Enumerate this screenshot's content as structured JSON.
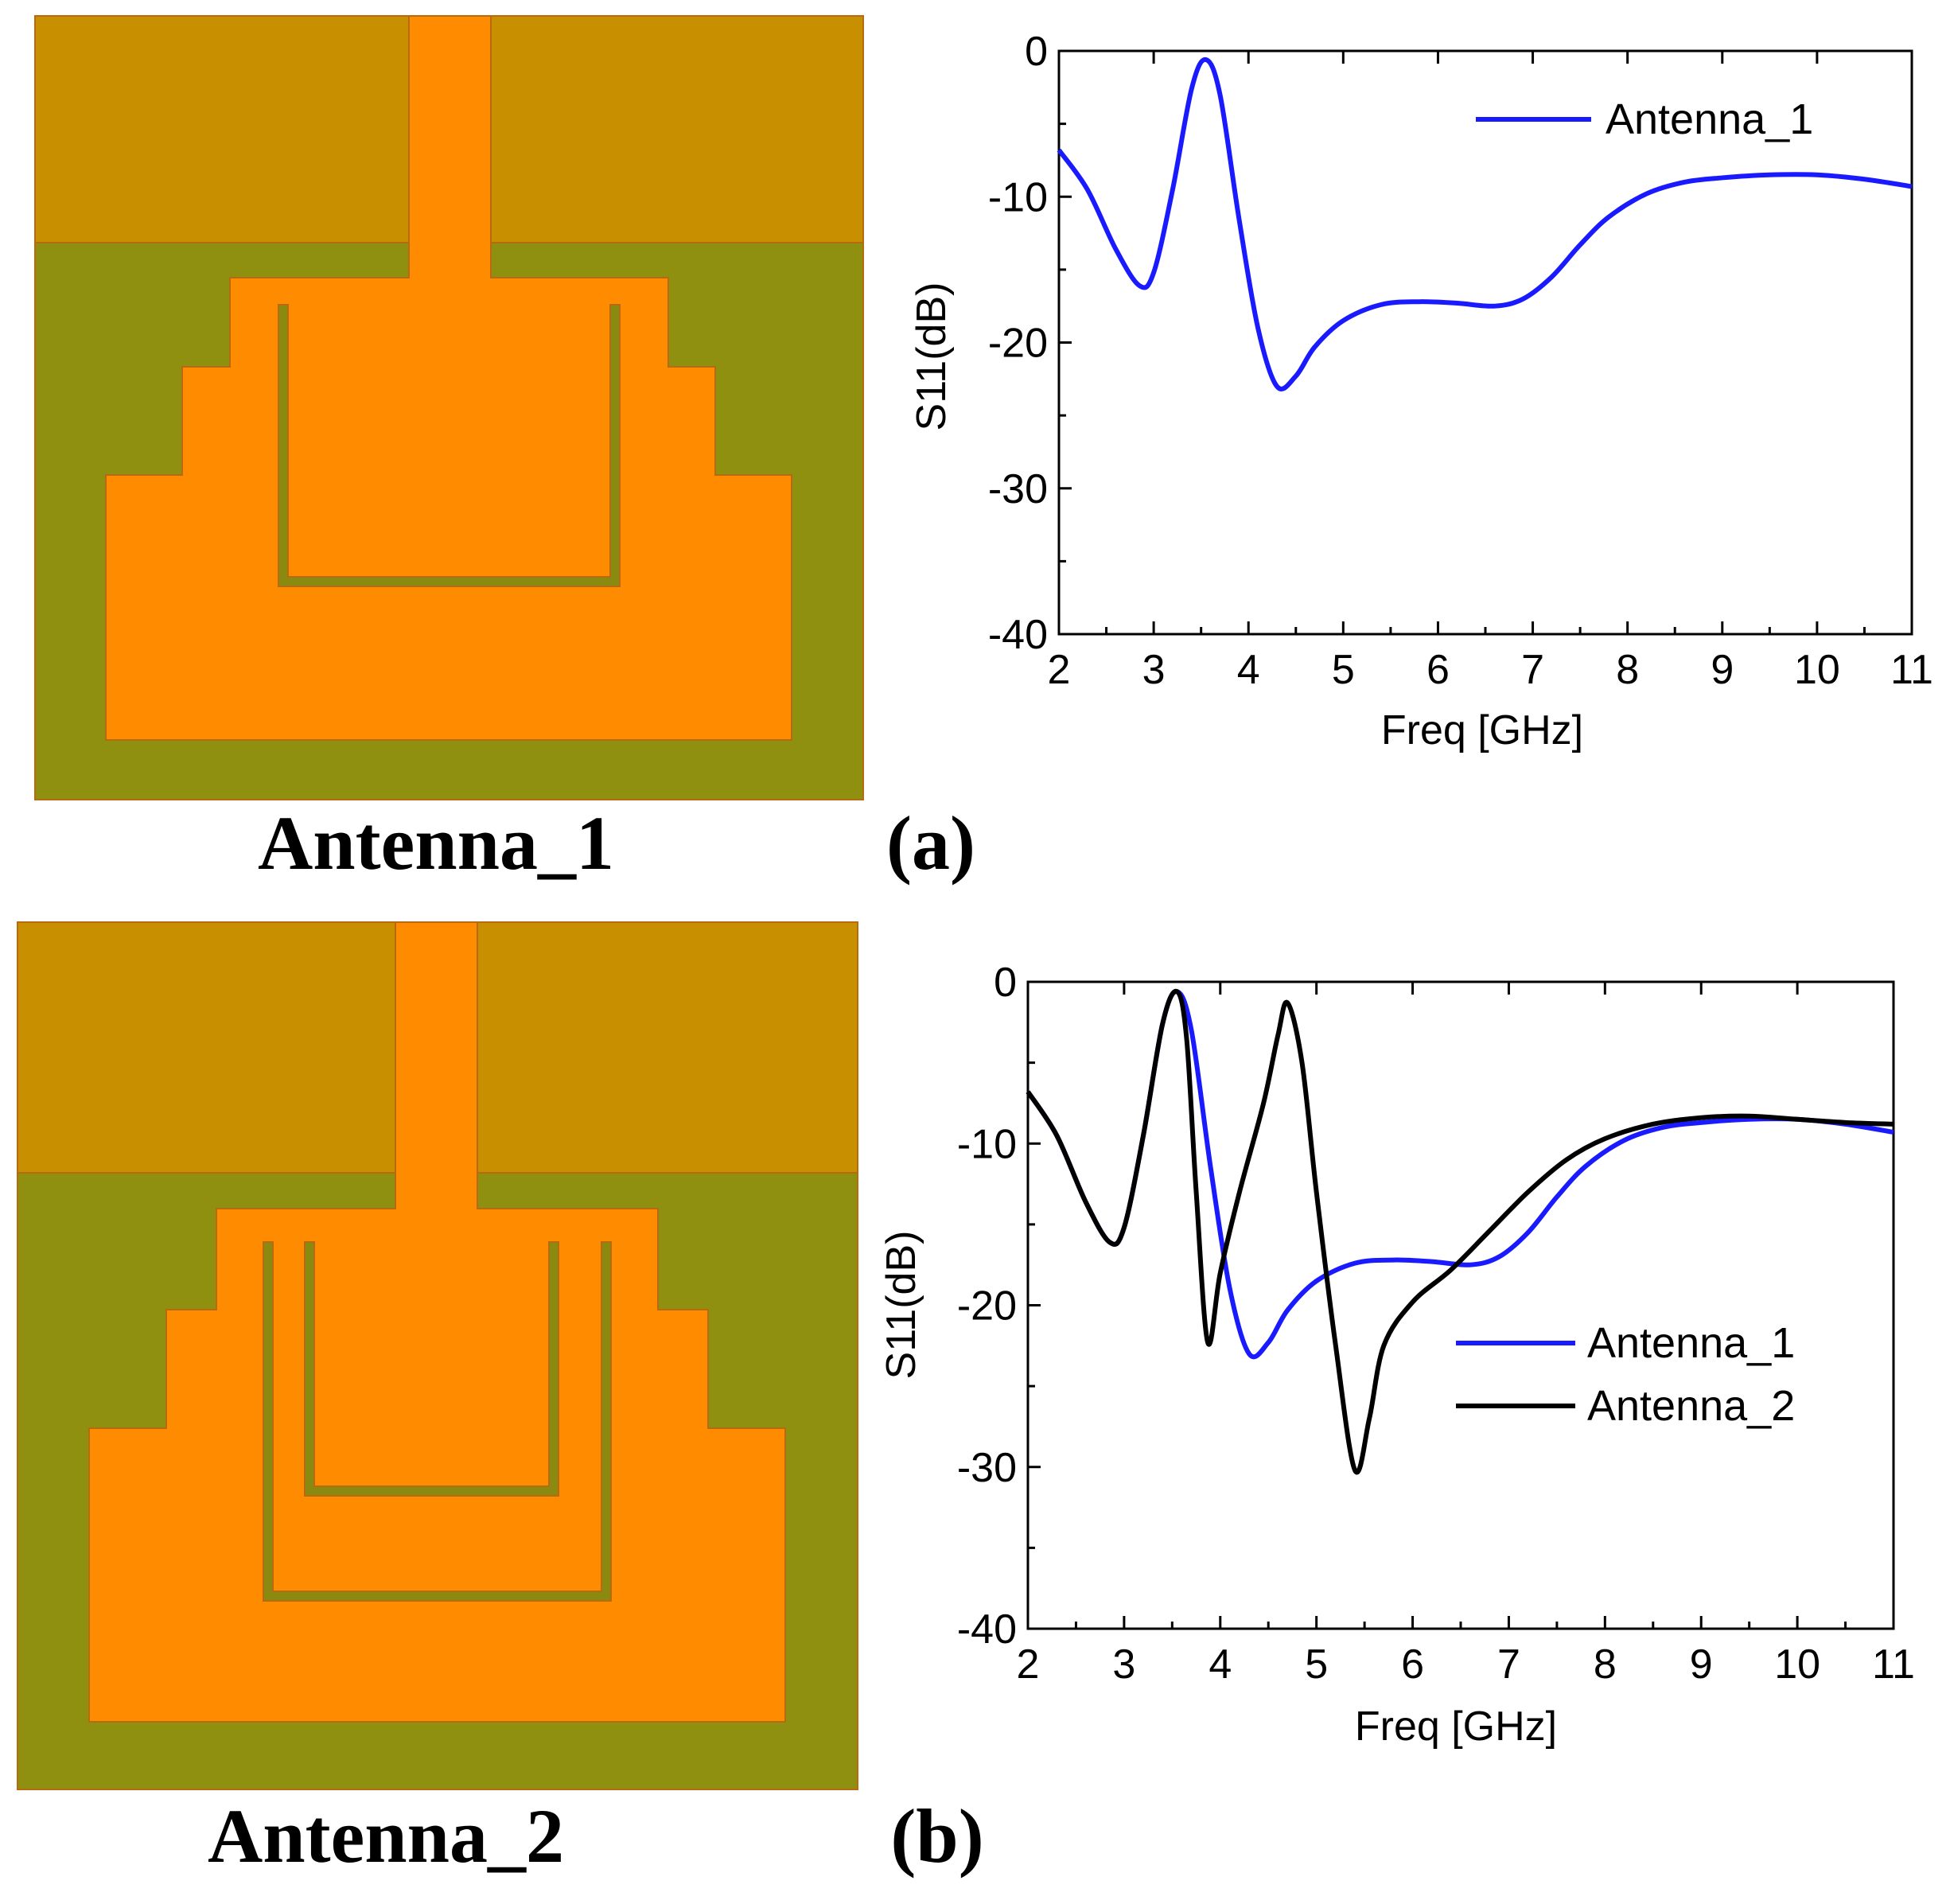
{
  "colors": {
    "ground_upper": "#c88f00",
    "ground_lower": "#8f8f10",
    "patch": "#ff8c00",
    "patch_edge": "#b86a10",
    "slot": "#8a8a10",
    "series_blue": "#1a1aff",
    "series_black": "#000000"
  },
  "panels": [
    {
      "caption": "Antenna_1",
      "label": "(a)"
    },
    {
      "caption": "Antenna_2",
      "label": "(b)"
    }
  ],
  "chart_data": [
    {
      "type": "line",
      "xlabel": "Freq [GHz]",
      "ylabel": "S11(dB)",
      "xlim": [
        2,
        11
      ],
      "ylim": [
        -40,
        0
      ],
      "xticks": [
        2,
        3,
        4,
        5,
        6,
        7,
        8,
        9,
        10,
        11
      ],
      "yticks": [
        0,
        -10,
        -20,
        -30,
        -40
      ],
      "legend_position": "top-right",
      "series": [
        {
          "name": "Antenna_1",
          "color": "#1a1aff",
          "points": [
            [
              2.0,
              -6.8
            ],
            [
              2.3,
              -9.5
            ],
            [
              2.6,
              -13.6
            ],
            [
              2.85,
              -16.1
            ],
            [
              3.0,
              -15.2
            ],
            [
              3.2,
              -9.5
            ],
            [
              3.4,
              -2.6
            ],
            [
              3.55,
              -0.6
            ],
            [
              3.7,
              -3.0
            ],
            [
              3.9,
              -11.5
            ],
            [
              4.1,
              -19.0
            ],
            [
              4.3,
              -23.0
            ],
            [
              4.5,
              -22.3
            ],
            [
              4.7,
              -20.3
            ],
            [
              5.0,
              -18.5
            ],
            [
              5.4,
              -17.4
            ],
            [
              5.8,
              -17.2
            ],
            [
              6.2,
              -17.3
            ],
            [
              6.6,
              -17.5
            ],
            [
              6.9,
              -17.0
            ],
            [
              7.2,
              -15.5
            ],
            [
              7.5,
              -13.3
            ],
            [
              7.8,
              -11.4
            ],
            [
              8.2,
              -9.8
            ],
            [
              8.6,
              -9.0
            ],
            [
              9.0,
              -8.7
            ],
            [
              9.5,
              -8.5
            ],
            [
              10.0,
              -8.5
            ],
            [
              10.5,
              -8.8
            ],
            [
              11.0,
              -9.3
            ]
          ]
        }
      ]
    },
    {
      "type": "line",
      "xlabel": "Freq [GHz]",
      "ylabel": "S11(dB)",
      "xlim": [
        2,
        11
      ],
      "ylim": [
        -40,
        0
      ],
      "xticks": [
        2,
        3,
        4,
        5,
        6,
        7,
        8,
        9,
        10,
        11
      ],
      "yticks": [
        0,
        -10,
        -20,
        -30,
        -40
      ],
      "legend_position": "center-right",
      "series": [
        {
          "name": "Antenna_1",
          "color": "#1a1aff",
          "points": [
            [
              2.0,
              -6.8
            ],
            [
              2.3,
              -9.5
            ],
            [
              2.6,
              -13.6
            ],
            [
              2.85,
              -16.1
            ],
            [
              3.0,
              -15.2
            ],
            [
              3.2,
              -9.5
            ],
            [
              3.4,
              -2.6
            ],
            [
              3.55,
              -0.6
            ],
            [
              3.7,
              -3.0
            ],
            [
              3.9,
              -11.5
            ],
            [
              4.1,
              -19.0
            ],
            [
              4.3,
              -23.0
            ],
            [
              4.5,
              -22.3
            ],
            [
              4.7,
              -20.3
            ],
            [
              5.0,
              -18.5
            ],
            [
              5.4,
              -17.4
            ],
            [
              5.8,
              -17.2
            ],
            [
              6.2,
              -17.3
            ],
            [
              6.6,
              -17.5
            ],
            [
              6.9,
              -17.0
            ],
            [
              7.2,
              -15.5
            ],
            [
              7.5,
              -13.3
            ],
            [
              7.8,
              -11.4
            ],
            [
              8.2,
              -9.8
            ],
            [
              8.6,
              -9.0
            ],
            [
              9.0,
              -8.7
            ],
            [
              9.5,
              -8.5
            ],
            [
              10.0,
              -8.5
            ],
            [
              10.5,
              -8.8
            ],
            [
              11.0,
              -9.3
            ]
          ]
        },
        {
          "name": "Antenna_2",
          "color": "#000000",
          "points": [
            [
              2.0,
              -6.8
            ],
            [
              2.3,
              -9.5
            ],
            [
              2.6,
              -13.6
            ],
            [
              2.85,
              -16.1
            ],
            [
              3.0,
              -15.2
            ],
            [
              3.2,
              -9.5
            ],
            [
              3.4,
              -2.6
            ],
            [
              3.55,
              -0.6
            ],
            [
              3.65,
              -3.5
            ],
            [
              3.75,
              -13.0
            ],
            [
              3.87,
              -22.3
            ],
            [
              4.0,
              -18.0
            ],
            [
              4.2,
              -13.0
            ],
            [
              4.45,
              -7.5
            ],
            [
              4.6,
              -3.3
            ],
            [
              4.7,
              -1.3
            ],
            [
              4.85,
              -5.0
            ],
            [
              5.0,
              -13.0
            ],
            [
              5.2,
              -22.5
            ],
            [
              5.4,
              -30.2
            ],
            [
              5.55,
              -27.0
            ],
            [
              5.7,
              -22.5
            ],
            [
              6.0,
              -19.8
            ],
            [
              6.4,
              -17.8
            ],
            [
              6.8,
              -15.4
            ],
            [
              7.2,
              -13.0
            ],
            [
              7.6,
              -11.0
            ],
            [
              8.0,
              -9.7
            ],
            [
              8.5,
              -8.8
            ],
            [
              9.0,
              -8.4
            ],
            [
              9.5,
              -8.3
            ],
            [
              10.0,
              -8.5
            ],
            [
              10.5,
              -8.7
            ],
            [
              11.0,
              -8.8
            ]
          ]
        }
      ]
    }
  ]
}
